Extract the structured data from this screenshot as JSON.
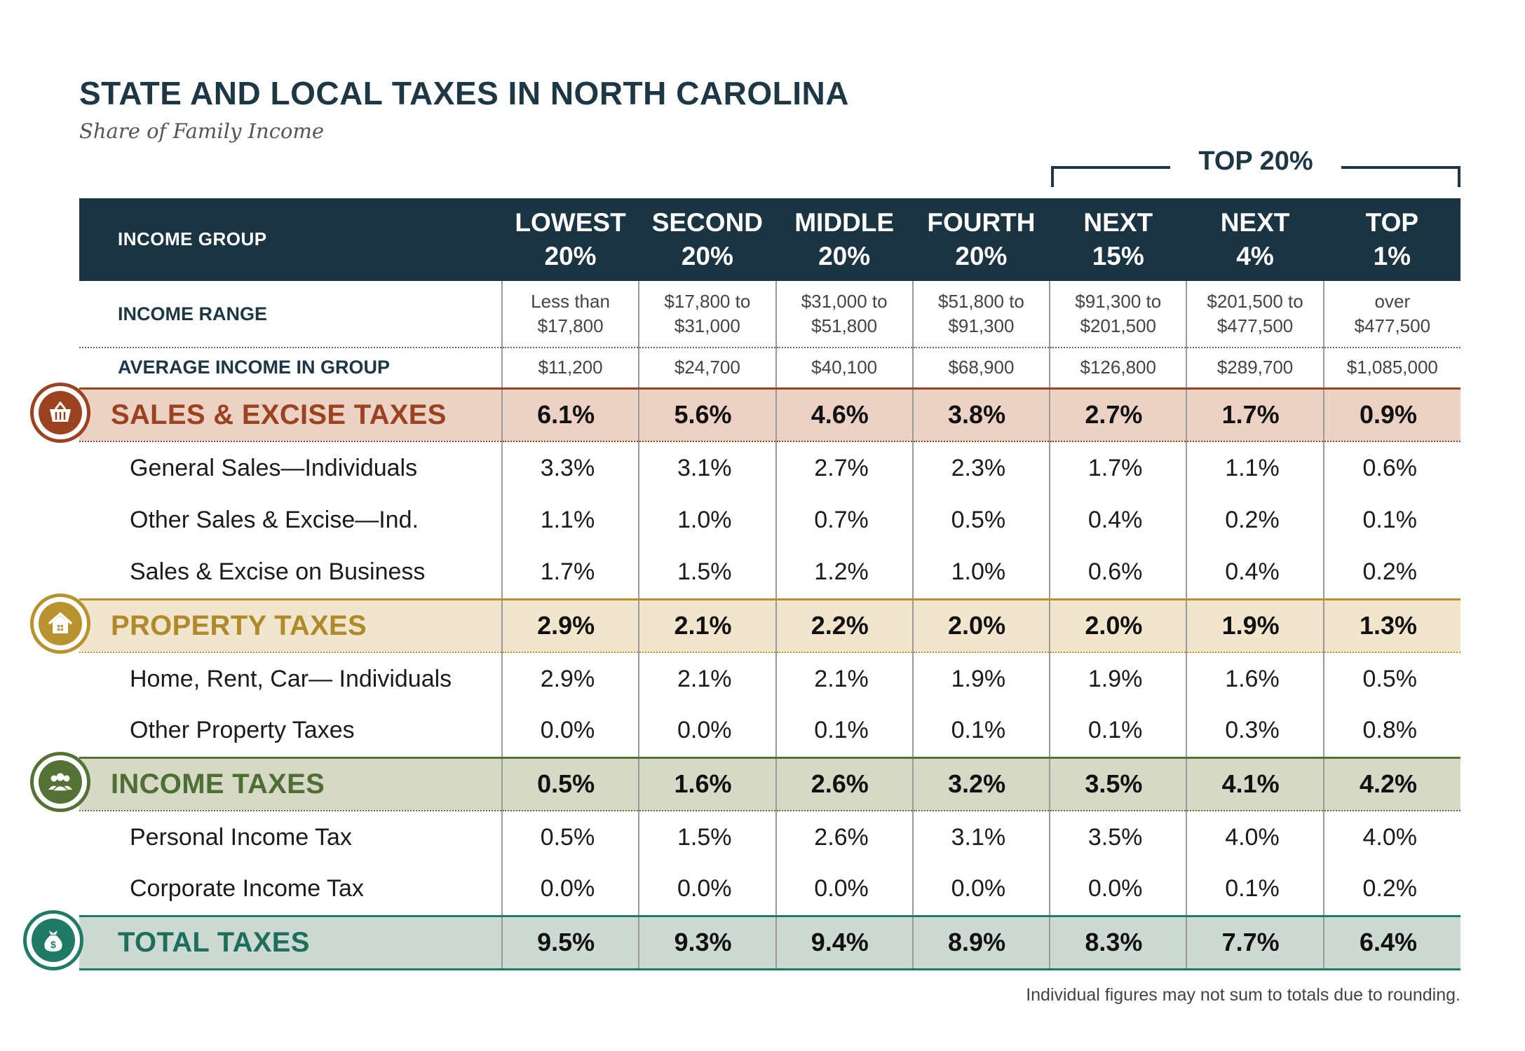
{
  "title": "STATE AND LOCAL TAXES IN NORTH CAROLINA",
  "subtitle": "Share of Family Income",
  "top_group_label": "TOP 20%",
  "footnote": "Individual figures may not sum to totals due to rounding.",
  "colors": {
    "header_bg": "#1b3442",
    "sales": "#9b4220",
    "property": "#b8922e",
    "income": "#557236",
    "total": "#1f7a66"
  },
  "icons": {
    "sales": "basket-icon",
    "property": "house-icon",
    "income": "people-icon",
    "total": "money-bag-icon"
  },
  "header": {
    "label": "INCOME  GROUP",
    "groups": [
      {
        "line1": "LOWEST",
        "line2": "20%"
      },
      {
        "line1": "SECOND",
        "line2": "20%"
      },
      {
        "line1": "MIDDLE",
        "line2": "20%"
      },
      {
        "line1": "FOURTH",
        "line2": "20%"
      },
      {
        "line1": "NEXT",
        "line2": "15%"
      },
      {
        "line1": "NEXT",
        "line2": "4%"
      },
      {
        "line1": "TOP",
        "line2": "1%"
      }
    ]
  },
  "income_range": {
    "label": "INCOME RANGE",
    "values": [
      {
        "line1": "Less than",
        "line2": "$17,800"
      },
      {
        "line1": "$17,800 to",
        "line2": "$31,000"
      },
      {
        "line1": "$31,000 to",
        "line2": "$51,800"
      },
      {
        "line1": "$51,800 to",
        "line2": "$91,300"
      },
      {
        "line1": "$91,300 to",
        "line2": "$201,500"
      },
      {
        "line1": "$201,500 to",
        "line2": "$477,500"
      },
      {
        "line1": "over",
        "line2": "$477,500"
      }
    ]
  },
  "average_income": {
    "label": "AVERAGE INCOME IN GROUP",
    "values": [
      "$11,200",
      "$24,700",
      "$40,100",
      "$68,900",
      "$126,800",
      "$289,700",
      "$1,085,000"
    ]
  },
  "chart_data": {
    "type": "table",
    "title": "STATE AND LOCAL TAXES IN NORTH CAROLINA",
    "subtitle": "Share of Family Income",
    "columns": [
      "LOWEST 20%",
      "SECOND 20%",
      "MIDDLE 20%",
      "FOURTH 20%",
      "NEXT 15%",
      "NEXT 4%",
      "TOP 1%"
    ],
    "sales": {
      "name": "SALES & EXCISE TAXES",
      "total": [
        "6.1%",
        "5.6%",
        "4.6%",
        "3.8%",
        "2.7%",
        "1.7%",
        "0.9%"
      ],
      "items": [
        {
          "name": "General Sales—Individuals",
          "values": [
            "3.3%",
            "3.1%",
            "2.7%",
            "2.3%",
            "1.7%",
            "1.1%",
            "0.6%"
          ]
        },
        {
          "name": "Other Sales & Excise—Ind.",
          "values": [
            "1.1%",
            "1.0%",
            "0.7%",
            "0.5%",
            "0.4%",
            "0.2%",
            "0.1%"
          ]
        },
        {
          "name": "Sales & Excise on Business",
          "values": [
            "1.7%",
            "1.5%",
            "1.2%",
            "1.0%",
            "0.6%",
            "0.4%",
            "0.2%"
          ]
        }
      ]
    },
    "property": {
      "name": "PROPERTY TAXES",
      "total": [
        "2.9%",
        "2.1%",
        "2.2%",
        "2.0%",
        "2.0%",
        "1.9%",
        "1.3%"
      ],
      "items": [
        {
          "name": "Home, Rent, Car— Individuals",
          "values": [
            "2.9%",
            "2.1%",
            "2.1%",
            "1.9%",
            "1.9%",
            "1.6%",
            "0.5%"
          ]
        },
        {
          "name": "Other Property Taxes",
          "values": [
            "0.0%",
            "0.0%",
            "0.1%",
            "0.1%",
            "0.1%",
            "0.3%",
            "0.8%"
          ]
        }
      ]
    },
    "income": {
      "name": "INCOME TAXES",
      "total": [
        "0.5%",
        "1.6%",
        "2.6%",
        "3.2%",
        "3.5%",
        "4.1%",
        "4.2%"
      ],
      "items": [
        {
          "name": "Personal Income Tax",
          "values": [
            "0.5%",
            "1.5%",
            "2.6%",
            "3.1%",
            "3.5%",
            "4.0%",
            "4.0%"
          ]
        },
        {
          "name": "Corporate Income Tax",
          "values": [
            "0.0%",
            "0.0%",
            "0.0%",
            "0.0%",
            "0.0%",
            "0.1%",
            "0.2%"
          ]
        }
      ]
    },
    "total": {
      "name": "TOTAL TAXES",
      "values": [
        "9.5%",
        "9.3%",
        "9.4%",
        "8.9%",
        "8.3%",
        "7.7%",
        "6.4%"
      ]
    }
  }
}
